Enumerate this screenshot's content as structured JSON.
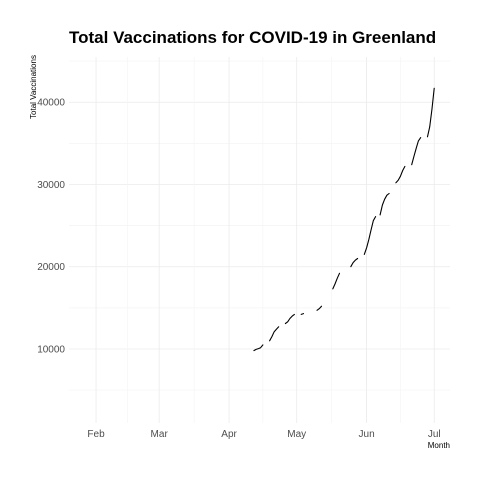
{
  "chart_data": {
    "type": "line",
    "title": "Total Vaccinations for COVID-19 in Greenland",
    "xlabel": "Month",
    "ylabel": "Total Vaccinations",
    "x_ticks": [
      "Feb",
      "Mar",
      "Apr",
      "May",
      "Jun",
      "Jul"
    ],
    "x_tick_dates": [
      "2021-02-01",
      "2021-03-01",
      "2021-04-01",
      "2021-05-01",
      "2021-06-01",
      "2021-07-01"
    ],
    "xlim": [
      "2021-01-20",
      "2021-07-08"
    ],
    "y_ticks": [
      10000,
      20000,
      30000,
      40000
    ],
    "ylim": [
      1000,
      45500
    ],
    "grid": true,
    "legend": "none",
    "segments": [
      [
        [
          "2021-04-12",
          9800
        ],
        [
          "2021-04-13",
          9950
        ],
        [
          "2021-04-14",
          10050
        ],
        [
          "2021-04-15",
          10150
        ],
        [
          "2021-04-16",
          10500
        ]
      ],
      [
        [
          "2021-04-19",
          11000
        ],
        [
          "2021-04-20",
          11500
        ],
        [
          "2021-04-21",
          12100
        ],
        [
          "2021-04-22",
          12400
        ],
        [
          "2021-04-23",
          12700
        ]
      ],
      [
        [
          "2021-04-26",
          13100
        ],
        [
          "2021-04-27",
          13300
        ],
        [
          "2021-04-28",
          13700
        ],
        [
          "2021-04-29",
          14000
        ],
        [
          "2021-04-30",
          14200
        ]
      ],
      [
        [
          "2021-05-03",
          14200
        ],
        [
          "2021-05-04",
          14300
        ]
      ],
      [
        [
          "2021-05-10",
          14700
        ],
        [
          "2021-05-11",
          14900
        ],
        [
          "2021-05-12",
          15200
        ]
      ],
      [
        [
          "2021-05-17",
          17300
        ],
        [
          "2021-05-18",
          17900
        ],
        [
          "2021-05-19",
          18600
        ],
        [
          "2021-05-20",
          19200
        ]
      ],
      [
        [
          "2021-05-25",
          20000
        ],
        [
          "2021-05-26",
          20500
        ],
        [
          "2021-05-27",
          20800
        ],
        [
          "2021-05-28",
          21000
        ]
      ],
      [
        [
          "2021-05-31",
          21500
        ],
        [
          "2021-06-01",
          22300
        ],
        [
          "2021-06-02",
          23300
        ],
        [
          "2021-06-03",
          24500
        ],
        [
          "2021-06-04",
          25600
        ],
        [
          "2021-06-05",
          26100
        ]
      ],
      [
        [
          "2021-06-07",
          26300
        ],
        [
          "2021-06-08",
          27500
        ],
        [
          "2021-06-09",
          28200
        ],
        [
          "2021-06-10",
          28700
        ],
        [
          "2021-06-11",
          28900
        ]
      ],
      [
        [
          "2021-06-14",
          30200
        ],
        [
          "2021-06-15",
          30500
        ],
        [
          "2021-06-16",
          31000
        ],
        [
          "2021-06-17",
          31700
        ],
        [
          "2021-06-18",
          32200
        ]
      ],
      [
        [
          "2021-06-21",
          32400
        ],
        [
          "2021-06-22",
          33400
        ],
        [
          "2021-06-23",
          34400
        ],
        [
          "2021-06-24",
          35300
        ],
        [
          "2021-06-25",
          35700
        ]
      ],
      [
        [
          "2021-06-28",
          35800
        ],
        [
          "2021-06-29",
          37000
        ],
        [
          "2021-06-30",
          39200
        ],
        [
          "2021-07-01",
          41700
        ]
      ]
    ]
  }
}
